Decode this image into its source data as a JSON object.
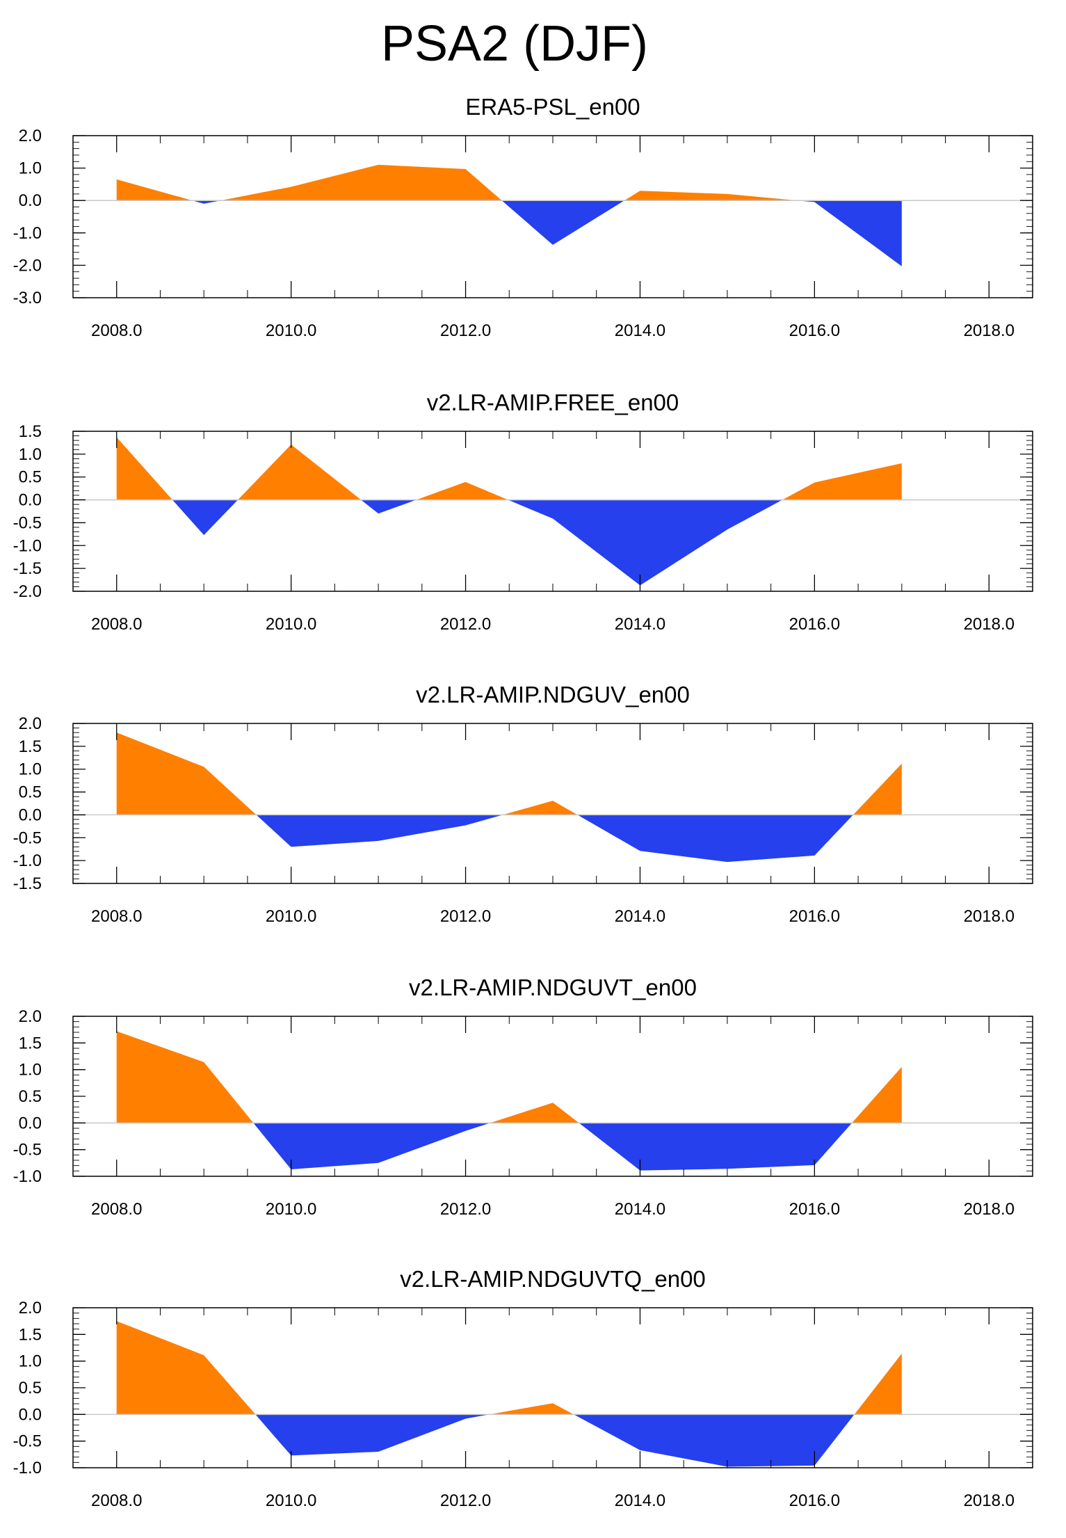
{
  "figure_title": "PSA2 (DJF)",
  "colors": {
    "positive": "#ff7f00",
    "negative": "#2540ec",
    "axis": "#000000",
    "zero_line": "#c8c8c8"
  },
  "chart_data": [
    {
      "type": "area",
      "title": "ERA5-PSL_en00",
      "x": [
        2008,
        2009,
        2010,
        2011,
        2012,
        2013,
        2014,
        2015,
        2016,
        2017
      ],
      "values": [
        0.65,
        -0.1,
        0.42,
        1.1,
        0.97,
        -1.37,
        0.3,
        0.2,
        -0.05,
        -2.03
      ],
      "xlim": [
        2007.5,
        2018.5
      ],
      "ylim": [
        -3.0,
        2.0
      ],
      "xticks": [
        "2008.0",
        "2010.0",
        "2012.0",
        "2014.0",
        "2016.0",
        "2018.0"
      ],
      "yticks": [
        "2.0",
        "1.0",
        "0.0",
        "-1.0",
        "-2.0",
        "-3.0"
      ],
      "xlabel": "",
      "ylabel": ""
    },
    {
      "type": "area",
      "title": "v2.LR-AMIP.FREE_en00",
      "x": [
        2008,
        2009,
        2010,
        2011,
        2012,
        2013,
        2014,
        2015,
        2016,
        2017
      ],
      "values": [
        1.37,
        -0.77,
        1.21,
        -0.3,
        0.39,
        -0.41,
        -1.87,
        -0.65,
        0.38,
        0.8
      ],
      "xlim": [
        2007.5,
        2018.5
      ],
      "ylim": [
        -2.0,
        1.5
      ],
      "xticks": [
        "2008.0",
        "2010.0",
        "2012.0",
        "2014.0",
        "2016.0",
        "2018.0"
      ],
      "yticks": [
        "1.5",
        "1.0",
        "0.5",
        "0.0",
        "-0.5",
        "-1.0",
        "-1.5",
        "-2.0"
      ],
      "xlabel": "",
      "ylabel": ""
    },
    {
      "type": "area",
      "title": "v2.LR-AMIP.NDGUV_en00",
      "x": [
        2008,
        2009,
        2010,
        2011,
        2012,
        2013,
        2014,
        2015,
        2016,
        2017
      ],
      "values": [
        1.8,
        1.05,
        -0.7,
        -0.57,
        -0.23,
        0.31,
        -0.79,
        -1.03,
        -0.89,
        1.12
      ],
      "xlim": [
        2007.5,
        2018.5
      ],
      "ylim": [
        -1.5,
        2.0
      ],
      "xticks": [
        "2008.0",
        "2010.0",
        "2012.0",
        "2014.0",
        "2016.0",
        "2018.0"
      ],
      "yticks": [
        "2.0",
        "1.5",
        "1.0",
        "0.5",
        "0.0",
        "-0.5",
        "-1.0",
        "-1.5"
      ],
      "xlabel": "",
      "ylabel": ""
    },
    {
      "type": "area",
      "title": "v2.LR-AMIP.NDGUVT_en00",
      "x": [
        2008,
        2009,
        2010,
        2011,
        2012,
        2013,
        2014,
        2015,
        2016,
        2017
      ],
      "values": [
        1.72,
        1.14,
        -0.87,
        -0.75,
        -0.15,
        0.38,
        -0.89,
        -0.86,
        -0.79,
        1.05
      ],
      "xlim": [
        2007.5,
        2018.5
      ],
      "ylim": [
        -1.0,
        2.0
      ],
      "xticks": [
        "2008.0",
        "2010.0",
        "2012.0",
        "2014.0",
        "2016.0",
        "2018.0"
      ],
      "yticks": [
        "2.0",
        "1.5",
        "1.0",
        "0.5",
        "0.0",
        "-0.5",
        "-1.0"
      ],
      "xlabel": "",
      "ylabel": ""
    },
    {
      "type": "area",
      "title": "v2.LR-AMIP.NDGUVTQ_en00",
      "x": [
        2008,
        2009,
        2010,
        2011,
        2012,
        2013,
        2014,
        2015,
        2016,
        2017
      ],
      "values": [
        1.75,
        1.11,
        -0.77,
        -0.7,
        -0.08,
        0.21,
        -0.67,
        -0.98,
        -0.96,
        1.14
      ],
      "xlim": [
        2007.5,
        2018.5
      ],
      "ylim": [
        -1.0,
        2.0
      ],
      "xticks": [
        "2008.0",
        "2010.0",
        "2012.0",
        "2014.0",
        "2016.0",
        "2018.0"
      ],
      "yticks": [
        "2.0",
        "1.5",
        "1.0",
        "0.5",
        "0.0",
        "-0.5",
        "-1.0"
      ],
      "xlabel": "",
      "ylabel": ""
    }
  ]
}
